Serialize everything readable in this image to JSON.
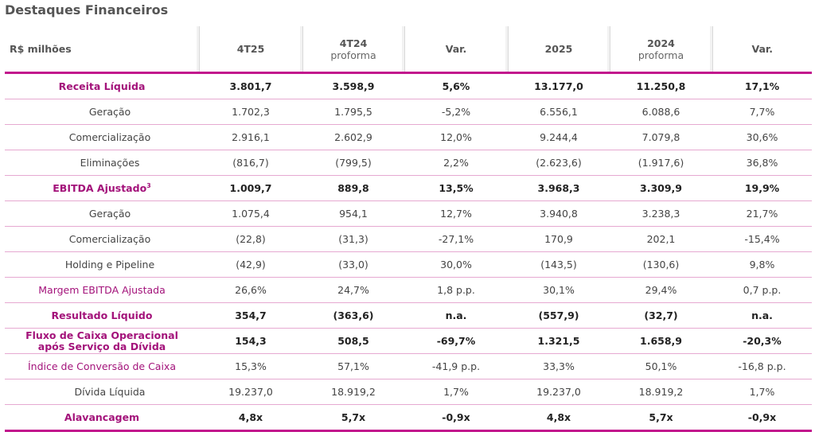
{
  "title": "Destaques Financeiros",
  "header": {
    "label": "R$ milhões",
    "columns": [
      {
        "main": "4T25",
        "sub": ""
      },
      {
        "main": "4T24",
        "sub": "proforma"
      },
      {
        "main": "Var.",
        "sub": ""
      },
      {
        "main": "2025",
        "sub": ""
      },
      {
        "main": "2024",
        "sub": "proforma"
      },
      {
        "main": "Var.",
        "sub": ""
      }
    ]
  },
  "rows": [
    {
      "label": "Receita Líquida",
      "values": [
        "3.801,7",
        "3.598,9",
        "5,6%",
        "13.177,0",
        "11.250,8",
        "17,1%"
      ]
    },
    {
      "label": "Geração",
      "values": [
        "1.702,3",
        "1.795,5",
        "-5,2%",
        "6.556,1",
        "6.088,6",
        "7,7%"
      ]
    },
    {
      "label": "Comercialização",
      "values": [
        "2.916,1",
        "2.602,9",
        "12,0%",
        "9.244,4",
        "7.079,8",
        "30,6%"
      ]
    },
    {
      "label": "Eliminações",
      "values": [
        "(816,7)",
        "(799,5)",
        "2,2%",
        "(2.623,6)",
        "(1.917,6)",
        "36,8%"
      ]
    },
    {
      "label": "EBITDA Ajustado",
      "sup": "3",
      "values": [
        "1.009,7",
        "889,8",
        "13,5%",
        "3.968,3",
        "3.309,9",
        "19,9%"
      ]
    },
    {
      "label": "Geração",
      "values": [
        "1.075,4",
        "954,1",
        "12,7%",
        "3.940,8",
        "3.238,3",
        "21,7%"
      ]
    },
    {
      "label": "Comercialização",
      "values": [
        "(22,8)",
        "(31,3)",
        "-27,1%",
        "170,9",
        "202,1",
        "-15,4%"
      ]
    },
    {
      "label": "Holding e Pipeline",
      "values": [
        "(42,9)",
        "(33,0)",
        "30,0%",
        "(143,5)",
        "(130,6)",
        "9,8%"
      ]
    },
    {
      "label": "Margem EBITDA Ajustada",
      "values": [
        "26,6%",
        "24,7%",
        "1,8 p.p.",
        "30,1%",
        "29,4%",
        "0,7 p.p."
      ]
    },
    {
      "label": "Resultado Líquido",
      "values": [
        "354,7",
        "(363,6)",
        "n.a.",
        "(557,9)",
        "(32,7)",
        "n.a."
      ]
    },
    {
      "label_line1": "Fluxo de Caixa Operacional",
      "label_line2": "após Serviço da Dívida",
      "values": [
        "154,3",
        "508,5",
        "-69,7%",
        "1.321,5",
        "1.658,9",
        "-20,3%"
      ]
    },
    {
      "label": "Índice de Conversão de Caixa",
      "values": [
        "15,3%",
        "57,1%",
        "-41,9 p.p.",
        "33,3%",
        "50,1%",
        "-16,8 p.p."
      ]
    },
    {
      "label": "Dívida Líquida",
      "values": [
        "19.237,0",
        "18.919,2",
        "1,7%",
        "19.237,0",
        "18.919,2",
        "1,7%"
      ]
    },
    {
      "label": "Alavancagem",
      "values": [
        "4,8x",
        "5,7x",
        "-0,9x",
        "4,8x",
        "5,7x",
        "-0,9x"
      ]
    }
  ]
}
